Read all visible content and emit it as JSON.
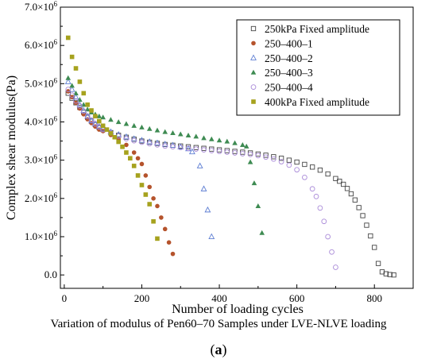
{
  "chart_data": {
    "type": "scatter",
    "xlabel": "Number of loading cycles",
    "ylabel": "Complex shear modulus(Pa)",
    "xlim": [
      -10,
      900
    ],
    "ylim": [
      -0.35,
      7.0
    ],
    "y_multiplier": "×10^6",
    "x_ticks": [
      "0",
      "200",
      "400",
      "600",
      "800"
    ],
    "y_ticks": [
      {
        "mant": "0.0",
        "exp": ""
      },
      {
        "mant": "1.0×10",
        "exp": "6"
      },
      {
        "mant": "2.0×10",
        "exp": "6"
      },
      {
        "mant": "3.0×10",
        "exp": "6"
      },
      {
        "mant": "4.0×10",
        "exp": "6"
      },
      {
        "mant": "5.0×10",
        "exp": "6"
      },
      {
        "mant": "6.0×10",
        "exp": "6"
      },
      {
        "mant": "7.0×10",
        "exp": "6"
      }
    ],
    "grid": false,
    "legend_placement": "top-right",
    "series": [
      {
        "name": "250kPa Fixed amplitude",
        "marker": "square-open",
        "color": "#444444",
        "x": [
          10,
          20,
          30,
          40,
          50,
          60,
          70,
          80,
          90,
          100,
          120,
          140,
          160,
          180,
          200,
          220,
          240,
          260,
          280,
          300,
          320,
          340,
          360,
          380,
          400,
          420,
          440,
          460,
          480,
          500,
          520,
          540,
          560,
          580,
          600,
          620,
          640,
          660,
          680,
          700,
          710,
          720,
          730,
          740,
          750,
          760,
          770,
          780,
          790,
          800,
          810,
          820,
          830,
          840,
          850
        ],
        "y": [
          4.75,
          4.62,
          4.5,
          4.38,
          4.25,
          4.12,
          4.02,
          3.93,
          3.85,
          3.8,
          3.72,
          3.65,
          3.6,
          3.55,
          3.5,
          3.47,
          3.44,
          3.41,
          3.39,
          3.37,
          3.35,
          3.33,
          3.31,
          3.29,
          3.27,
          3.25,
          3.23,
          3.21,
          3.19,
          3.16,
          3.13,
          3.09,
          3.05,
          3.0,
          2.95,
          2.89,
          2.82,
          2.74,
          2.64,
          2.52,
          2.45,
          2.37,
          2.26,
          2.12,
          1.96,
          1.76,
          1.55,
          1.3,
          1.02,
          0.72,
          0.3,
          0.08,
          0.03,
          0.01,
          0.0
        ]
      },
      {
        "name": "250–400–1",
        "marker": "circle-filled",
        "color": "#b5532c",
        "x": [
          10,
          20,
          30,
          40,
          50,
          60,
          70,
          80,
          90,
          100,
          120,
          140,
          160,
          180,
          190,
          200,
          210,
          220,
          230,
          240,
          250,
          260,
          270,
          280
        ],
        "y": [
          4.8,
          4.65,
          4.5,
          4.35,
          4.2,
          4.07,
          3.97,
          3.88,
          3.8,
          3.76,
          3.66,
          3.55,
          3.4,
          3.2,
          3.05,
          2.9,
          2.6,
          2.3,
          2.0,
          1.8,
          1.5,
          1.2,
          0.85,
          0.55
        ]
      },
      {
        "name": "250–400–2",
        "marker": "triangle-open",
        "color": "#5f7fd3",
        "x": [
          10,
          20,
          30,
          40,
          50,
          60,
          70,
          80,
          90,
          100,
          120,
          140,
          160,
          180,
          200,
          220,
          240,
          260,
          280,
          300,
          320,
          330,
          350,
          360,
          370,
          380
        ],
        "y": [
          5.05,
          4.85,
          4.65,
          4.45,
          4.3,
          4.15,
          4.03,
          3.95,
          3.88,
          3.82,
          3.74,
          3.67,
          3.61,
          3.56,
          3.52,
          3.48,
          3.45,
          3.42,
          3.39,
          3.35,
          3.3,
          3.22,
          2.85,
          2.25,
          1.7,
          1.0
        ]
      },
      {
        "name": "250–400–3",
        "marker": "triangle-filled",
        "color": "#3e8b52",
        "x": [
          10,
          20,
          30,
          40,
          50,
          60,
          70,
          80,
          90,
          100,
          120,
          140,
          160,
          180,
          200,
          220,
          240,
          260,
          280,
          300,
          320,
          340,
          360,
          380,
          400,
          420,
          440,
          460,
          470,
          480,
          490,
          500,
          510
        ],
        "y": [
          5.15,
          4.95,
          4.75,
          4.58,
          4.45,
          4.33,
          4.25,
          4.2,
          4.15,
          4.12,
          4.06,
          4.0,
          3.95,
          3.9,
          3.86,
          3.82,
          3.78,
          3.74,
          3.71,
          3.68,
          3.65,
          3.62,
          3.58,
          3.55,
          3.52,
          3.49,
          3.45,
          3.4,
          3.36,
          2.95,
          2.4,
          1.8,
          1.1
        ]
      },
      {
        "name": "250–400–4",
        "marker": "circle-open",
        "color": "#a98ad8",
        "x": [
          10,
          20,
          30,
          40,
          50,
          60,
          70,
          80,
          90,
          100,
          120,
          140,
          160,
          180,
          200,
          220,
          240,
          260,
          280,
          300,
          320,
          340,
          360,
          380,
          400,
          420,
          440,
          460,
          480,
          500,
          520,
          540,
          560,
          580,
          600,
          620,
          640,
          650,
          660,
          670,
          680,
          690,
          700
        ],
        "y": [
          4.85,
          4.7,
          4.55,
          4.42,
          4.28,
          4.15,
          4.05,
          3.95,
          3.87,
          3.8,
          3.71,
          3.63,
          3.56,
          3.51,
          3.47,
          3.43,
          3.4,
          3.37,
          3.35,
          3.33,
          3.31,
          3.29,
          3.27,
          3.25,
          3.23,
          3.21,
          3.19,
          3.17,
          3.15,
          3.12,
          3.08,
          3.03,
          2.96,
          2.87,
          2.75,
          2.55,
          2.25,
          2.05,
          1.75,
          1.4,
          1.0,
          0.6,
          0.2
        ]
      },
      {
        "name": "400kPa Fixed amplitude",
        "marker": "square-filled",
        "color": "#a6a21e",
        "x": [
          10,
          20,
          30,
          40,
          50,
          60,
          70,
          80,
          90,
          100,
          110,
          120,
          130,
          140,
          150,
          160,
          170,
          180,
          190,
          200,
          210,
          220,
          230,
          240
        ],
        "y": [
          6.2,
          5.7,
          5.4,
          5.05,
          4.75,
          4.45,
          4.3,
          4.15,
          4.02,
          3.9,
          3.8,
          3.7,
          3.6,
          3.48,
          3.35,
          3.2,
          3.05,
          2.85,
          2.6,
          2.35,
          2.1,
          1.85,
          1.4,
          0.95
        ]
      }
    ]
  },
  "caption": "Variation of modulus of Pen60–70 Samples under LVE-NLVE loading",
  "panel_label": "a"
}
